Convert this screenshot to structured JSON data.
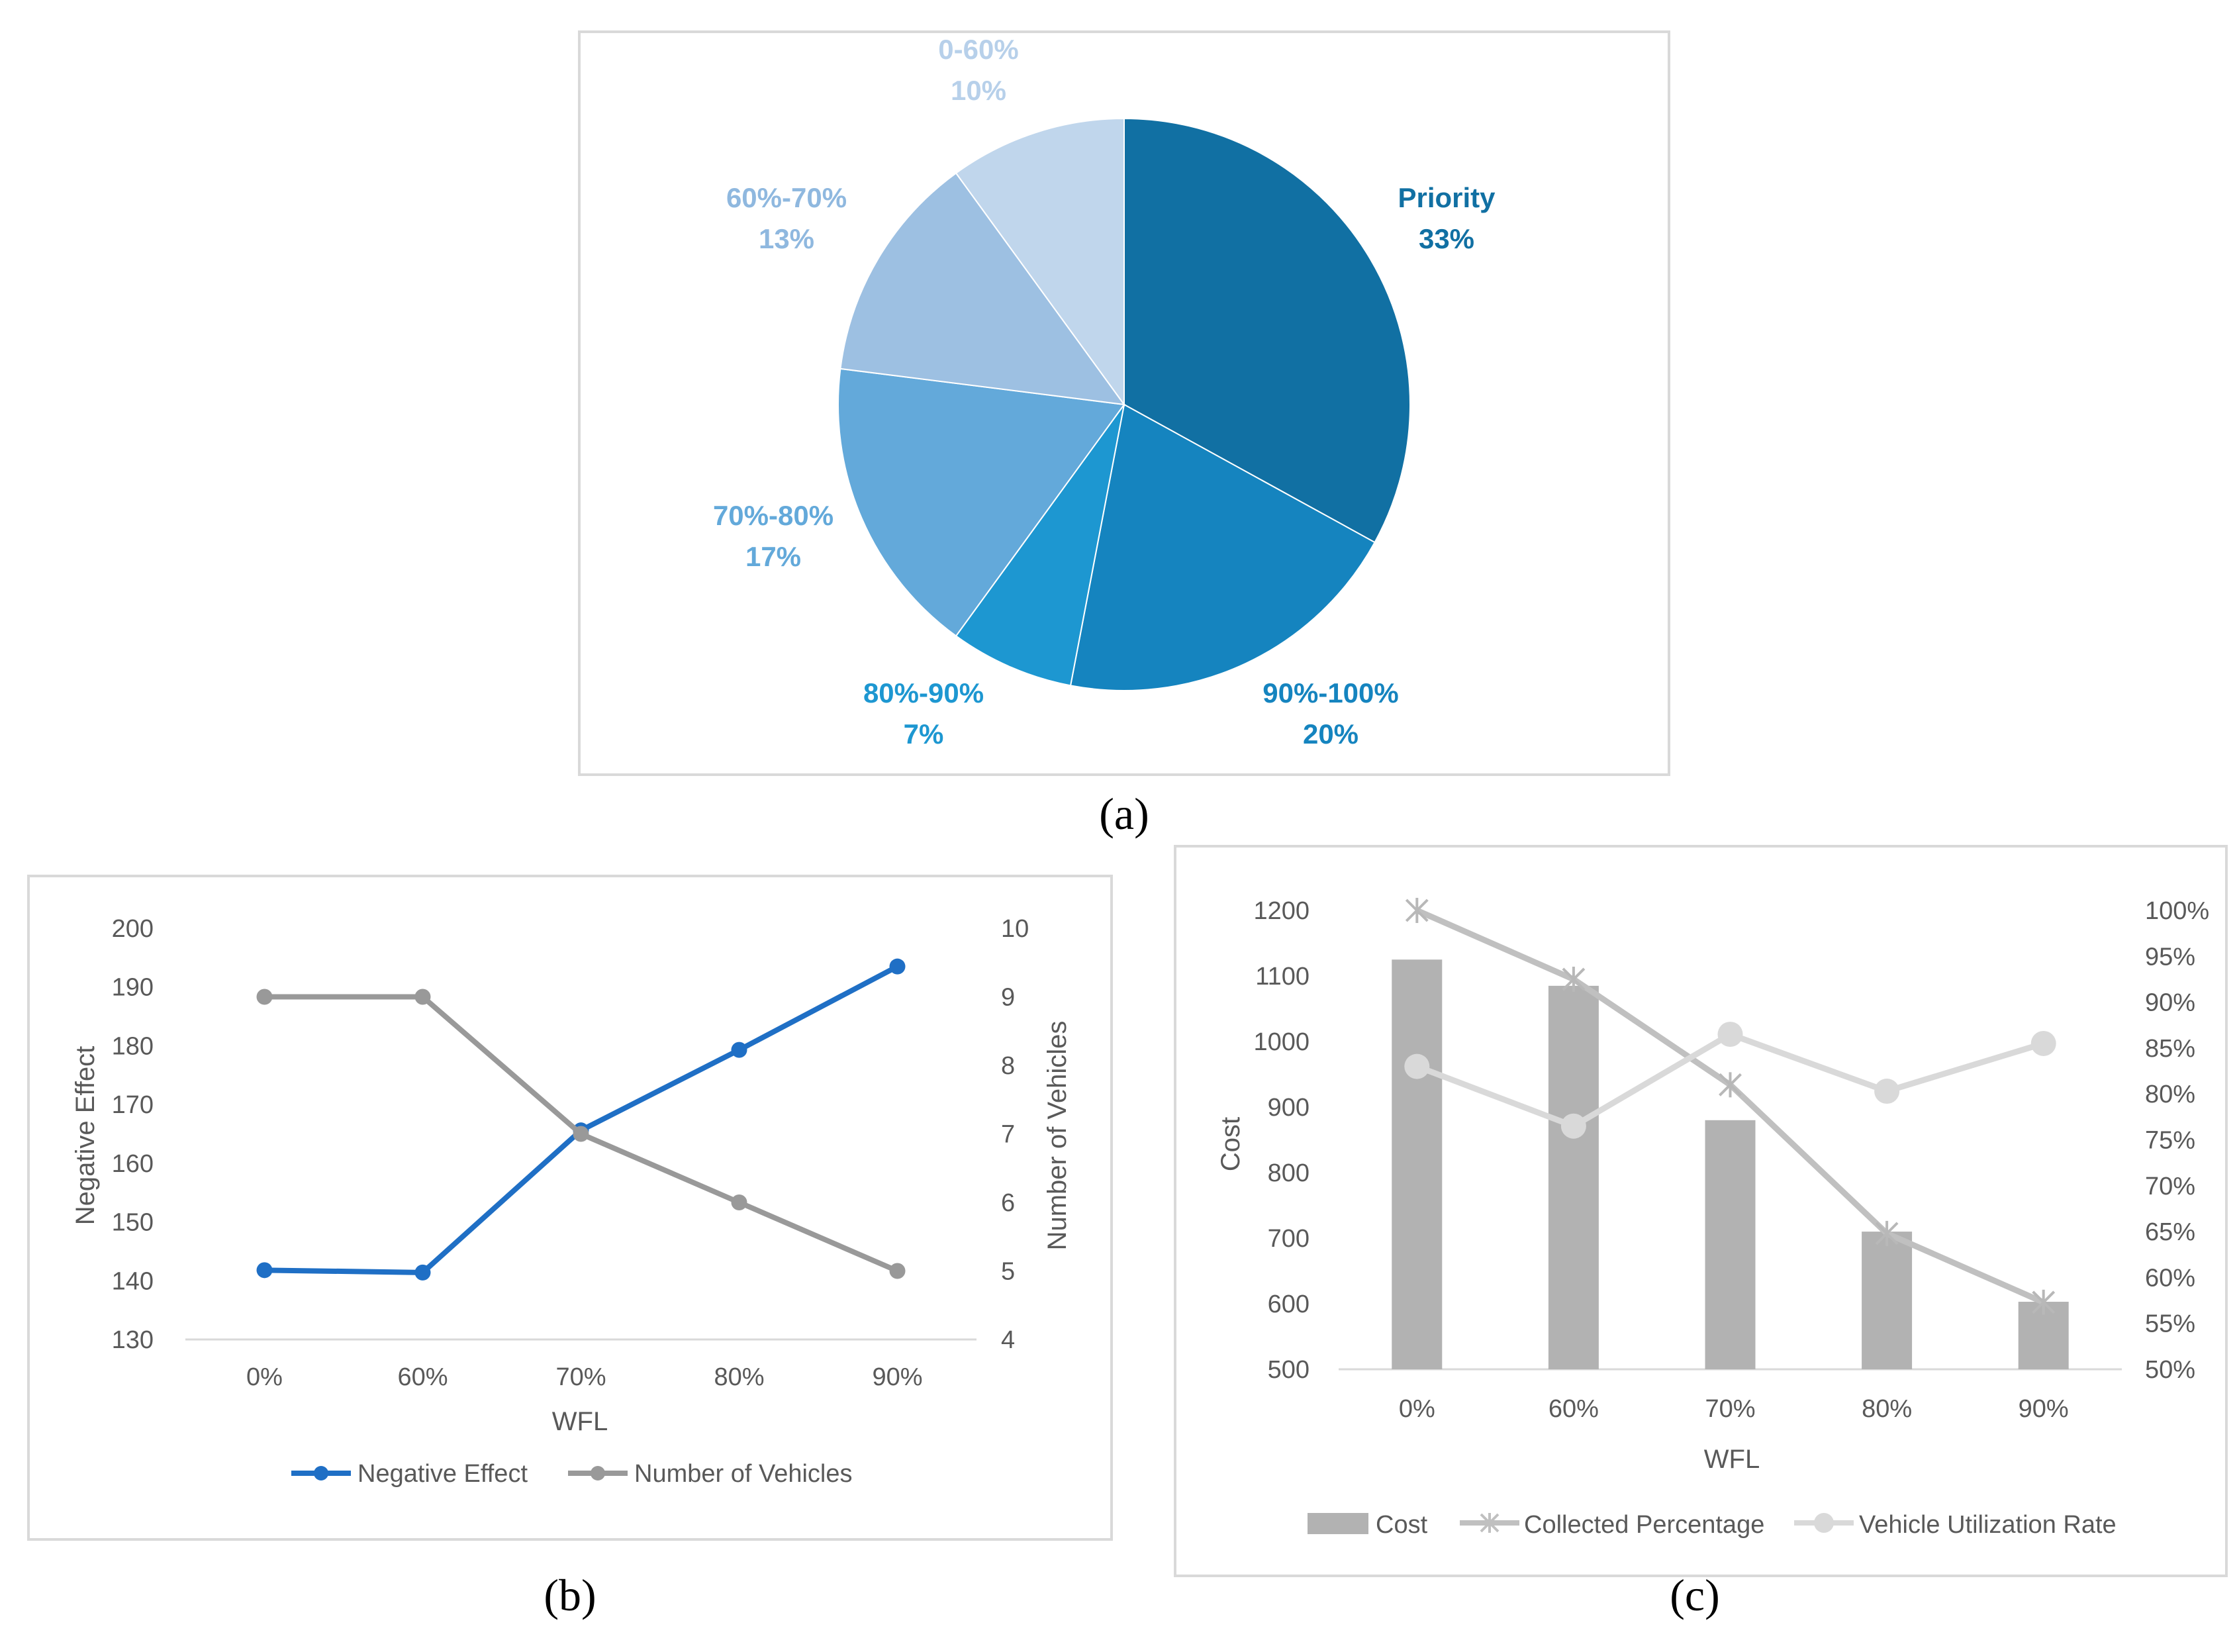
{
  "captions": {
    "a": "(a)",
    "b": "(b)",
    "c": "(c)"
  },
  "chart_data": [
    {
      "id": "a",
      "type": "pie",
      "start_angle_deg": 0,
      "direction": "clockwise",
      "slices": [
        {
          "label": "Priority",
          "value": 33,
          "value_label": "33%",
          "color": "#1170A3"
        },
        {
          "label": "90%-100%",
          "value": 20,
          "value_label": "20%",
          "color": "#1584BF"
        },
        {
          "label": "80%-90%",
          "value": 7,
          "value_label": "7%",
          "color": "#1D97D1"
        },
        {
          "label": "70%-80%",
          "value": 17,
          "value_label": "17%",
          "color": "#63A9DA"
        },
        {
          "label": "60%-70%",
          "value": 13,
          "value_label": "13%",
          "color": "#9DC0E2"
        },
        {
          "label": "0-60%",
          "value": 10,
          "value_label": "10%",
          "color": "#C0D6EC"
        }
      ]
    },
    {
      "id": "b",
      "type": "line",
      "categories": [
        "0%",
        "60%",
        "70%",
        "80%",
        "90%"
      ],
      "xlabel": "WFL",
      "ylabel": "Negative Effect",
      "y2label": "Number of Vehicles",
      "ylim": [
        130,
        200
      ],
      "yticks": [
        "130",
        "140",
        "150",
        "160",
        "170",
        "180",
        "190",
        "200"
      ],
      "y2lim": [
        4,
        10
      ],
      "y2ticks": [
        "4",
        "5",
        "6",
        "7",
        "8",
        "9",
        "10"
      ],
      "series": [
        {
          "name": "Negative Effect",
          "axis": "left",
          "color": "#1F6FC5",
          "values": [
            141.8,
            141.4,
            165.6,
            179.3,
            193.5
          ]
        },
        {
          "name": "Number of Vehicles",
          "axis": "right",
          "color": "#999999",
          "values": [
            9,
            9,
            7,
            6,
            5
          ]
        }
      ]
    },
    {
      "id": "c",
      "type": "bar+line",
      "categories": [
        "0%",
        "60%",
        "70%",
        "80%",
        "90%"
      ],
      "xlabel": "WFL",
      "ylabel": "Cost",
      "ylim": [
        500,
        1200
      ],
      "yticks": [
        "500",
        "600",
        "700",
        "800",
        "900",
        "1000",
        "1100",
        "1200"
      ],
      "y2lim": [
        50,
        100
      ],
      "y2ticks": [
        "50%",
        "55%",
        "60%",
        "65%",
        "70%",
        "75%",
        "80%",
        "85%",
        "90%",
        "95%",
        "100%"
      ],
      "series": [
        {
          "name": "Cost",
          "kind": "bar",
          "axis": "left",
          "color": "#B2B2B2",
          "values": [
            1125,
            1085,
            880,
            710,
            603
          ]
        },
        {
          "name": "Collected Percentage",
          "kind": "line",
          "marker": "star",
          "axis": "right",
          "color": "#C0C0C0",
          "values": [
            100,
            92.5,
            81,
            64.8,
            57.3
          ]
        },
        {
          "name": "Vehicle Utilization Rate",
          "kind": "line",
          "marker": "circle",
          "axis": "right",
          "color": "#D9D9D9",
          "values": [
            83,
            76.5,
            86.5,
            80.3,
            85.5
          ]
        }
      ]
    }
  ]
}
